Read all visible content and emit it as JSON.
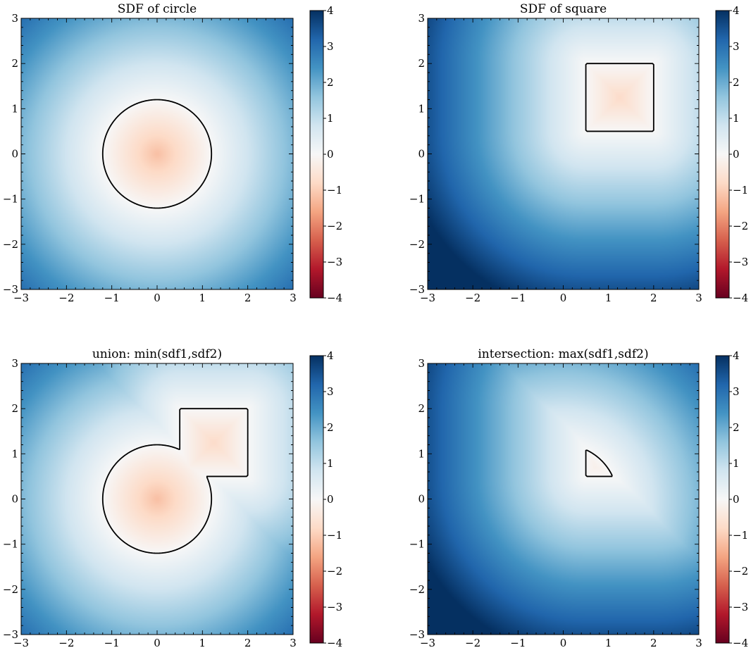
{
  "chart_data": [
    {
      "type": "heatmap",
      "title": "SDF of circle",
      "xlim": [
        -3,
        3
      ],
      "ylim": [
        -3,
        3
      ],
      "x_ticks": [
        "−3",
        "−2",
        "−1",
        "0",
        "1",
        "2",
        "3"
      ],
      "y_ticks": [
        "−3",
        "−2",
        "−1",
        "0",
        "1",
        "2",
        "3"
      ],
      "field": "circle",
      "circle": {
        "center": [
          0,
          0
        ],
        "radius": 1.2
      },
      "colorbar": {
        "range": [
          -4,
          4
        ],
        "ticks": [
          "−4",
          "−3",
          "−2",
          "−1",
          "0",
          "1",
          "2",
          "3",
          "4"
        ],
        "colormap": "RdBu"
      }
    },
    {
      "type": "heatmap",
      "title": "SDF of square",
      "xlim": [
        -3,
        3
      ],
      "ylim": [
        -3,
        3
      ],
      "x_ticks": [
        "−3",
        "−2",
        "−1",
        "0",
        "1",
        "2",
        "3"
      ],
      "y_ticks": [
        "−3",
        "−2",
        "−1",
        "0",
        "1",
        "2",
        "3"
      ],
      "field": "square",
      "square": {
        "xmin": 0.5,
        "xmax": 2.0,
        "ymin": 0.5,
        "ymax": 2.0
      },
      "colorbar": {
        "range": [
          -4,
          4
        ],
        "ticks": [
          "−4",
          "−3",
          "−2",
          "−1",
          "0",
          "1",
          "2",
          "3",
          "4"
        ],
        "colormap": "RdBu"
      }
    },
    {
      "type": "heatmap",
      "title": "union: min(sdf1,sdf2)",
      "xlim": [
        -3,
        3
      ],
      "ylim": [
        -3,
        3
      ],
      "x_ticks": [
        "−3",
        "−2",
        "−1",
        "0",
        "1",
        "2",
        "3"
      ],
      "y_ticks": [
        "−3",
        "−2",
        "−1",
        "0",
        "1",
        "2",
        "3"
      ],
      "field": "union",
      "colorbar": {
        "range": [
          -4,
          4
        ],
        "ticks": [
          "−4",
          "−3",
          "−2",
          "−1",
          "0",
          "1",
          "2",
          "3",
          "4"
        ],
        "colormap": "RdBu"
      }
    },
    {
      "type": "heatmap",
      "title": "intersection: max(sdf1,sdf2)",
      "xlim": [
        -3,
        3
      ],
      "ylim": [
        -3,
        3
      ],
      "x_ticks": [
        "−3",
        "−2",
        "−1",
        "0",
        "1",
        "2",
        "3"
      ],
      "y_ticks": [
        "−3",
        "−2",
        "−1",
        "0",
        "1",
        "2",
        "3"
      ],
      "field": "intersection",
      "colorbar": {
        "range": [
          -4,
          4
        ],
        "ticks": [
          "−4",
          "−3",
          "−2",
          "−1",
          "0",
          "1",
          "2",
          "3",
          "4"
        ],
        "colormap": "RdBu"
      }
    }
  ],
  "colors": {
    "colormap_stops": [
      "#67001f",
      "#b2182b",
      "#d6604d",
      "#f4a582",
      "#fddbc7",
      "#f7f7f7",
      "#d1e5f0",
      "#92c5de",
      "#4393c3",
      "#2166ac",
      "#053061"
    ],
    "contour": "#000000"
  }
}
